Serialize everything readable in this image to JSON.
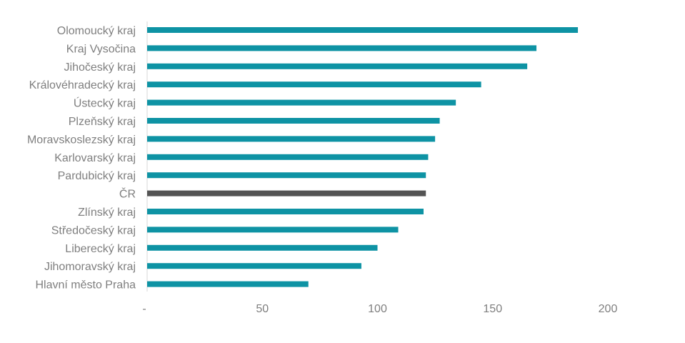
{
  "chart_data": {
    "type": "bar",
    "orientation": "horizontal",
    "title": "",
    "xlabel": "",
    "ylabel": "",
    "categories": [
      "Olomoucký kraj",
      "Kraj Vysočina",
      "Jihočeský kraj",
      "Královéhradecký kraj",
      "Ústecký kraj",
      "Plzeňský kraj",
      "Moravskoslezský kraj",
      "Karlovarský kraj",
      "Pardubický kraj",
      "ČR",
      "Zlínský kraj",
      "Středočeský kraj",
      "Liberecký kraj",
      "Jihomoravský kraj",
      "Hlavní město Praha"
    ],
    "values": [
      187,
      169,
      165,
      145,
      134,
      127,
      125,
      122,
      121,
      121,
      120,
      109,
      100,
      93,
      70
    ],
    "highlight_category": "ČR",
    "colors": {
      "bar": "#0e93a4",
      "highlight": "#545454",
      "axis": "#d9d9d9",
      "text": "#7f7f7f"
    },
    "xlim": [
      0,
      230
    ],
    "xticks": [
      {
        "value": 0,
        "label": "-"
      },
      {
        "value": 50,
        "label": "50"
      },
      {
        "value": 100,
        "label": "100"
      },
      {
        "value": 150,
        "label": "150"
      },
      {
        "value": 200,
        "label": "200"
      }
    ],
    "grid": false,
    "legend": "none"
  }
}
